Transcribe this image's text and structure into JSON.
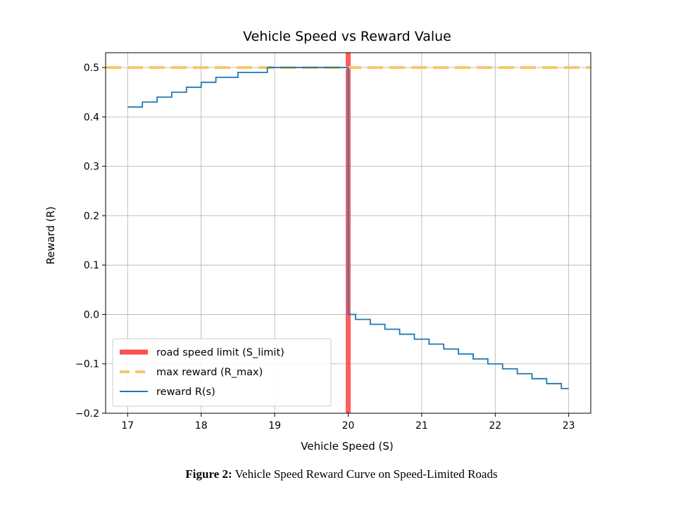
{
  "caption": {
    "label": "Figure 2:",
    "text": "Vehicle Speed Reward Curve on Speed-Limited Roads"
  },
  "chart_data": {
    "type": "line",
    "title": "Vehicle Speed vs Reward Value",
    "xlabel": "Vehicle Speed (S)",
    "ylabel": "Reward (R)",
    "xlim": [
      16.7,
      23.3
    ],
    "ylim": [
      -0.2,
      0.53
    ],
    "xticks": [
      17,
      18,
      19,
      20,
      21,
      22,
      23
    ],
    "yticks": [
      -0.2,
      -0.1,
      0.0,
      0.1,
      0.2,
      0.3,
      0.4,
      0.5
    ],
    "ytick_labels": [
      "−0.2",
      "−0.1",
      "0.0",
      "0.1",
      "0.2",
      "0.3",
      "0.4",
      "0.5"
    ],
    "xtick_labels": [
      "17",
      "18",
      "19",
      "20",
      "21",
      "22",
      "23"
    ],
    "grid": true,
    "legend_position": "lower-left",
    "series": [
      {
        "name": "road speed limit (S_limit)",
        "kind": "vline",
        "x": 20,
        "color": "#ff4c4c"
      },
      {
        "name": "max reward (R_max)",
        "kind": "hline",
        "y": 0.5,
        "color": "#f7c66b"
      },
      {
        "name": "reward R(s)",
        "kind": "step",
        "color": "#1f77b4",
        "x": [
          17.0,
          17.1,
          17.2,
          17.3,
          17.4,
          17.5,
          17.6,
          17.7,
          17.8,
          17.9,
          18.0,
          18.1,
          18.2,
          18.3,
          18.4,
          18.5,
          18.6,
          18.7,
          18.8,
          18.9,
          19.0,
          19.1,
          19.2,
          19.3,
          19.4,
          19.5,
          19.6,
          19.7,
          19.8,
          19.9,
          20.0,
          20.1,
          20.2,
          20.3,
          20.4,
          20.5,
          20.6,
          20.7,
          20.8,
          20.9,
          21.0,
          21.1,
          21.2,
          21.3,
          21.4,
          21.5,
          21.6,
          21.7,
          21.8,
          21.9,
          22.0,
          22.1,
          22.2,
          22.3,
          22.4,
          22.5,
          22.6,
          22.7,
          22.8,
          22.9,
          23.0
        ],
        "y": [
          0.42,
          0.42,
          0.43,
          0.43,
          0.44,
          0.44,
          0.45,
          0.45,
          0.46,
          0.46,
          0.47,
          0.47,
          0.48,
          0.48,
          0.48,
          0.49,
          0.49,
          0.49,
          0.49,
          0.5,
          0.5,
          0.5,
          0.5,
          0.5,
          0.5,
          0.5,
          0.5,
          0.5,
          0.5,
          0.5,
          0.0,
          -0.01,
          -0.01,
          -0.02,
          -0.02,
          -0.03,
          -0.03,
          -0.04,
          -0.04,
          -0.05,
          -0.05,
          -0.06,
          -0.06,
          -0.07,
          -0.07,
          -0.08,
          -0.08,
          -0.09,
          -0.09,
          -0.1,
          -0.1,
          -0.11,
          -0.11,
          -0.12,
          -0.12,
          -0.13,
          -0.13,
          -0.14,
          -0.14,
          -0.15,
          -0.15
        ]
      }
    ]
  }
}
